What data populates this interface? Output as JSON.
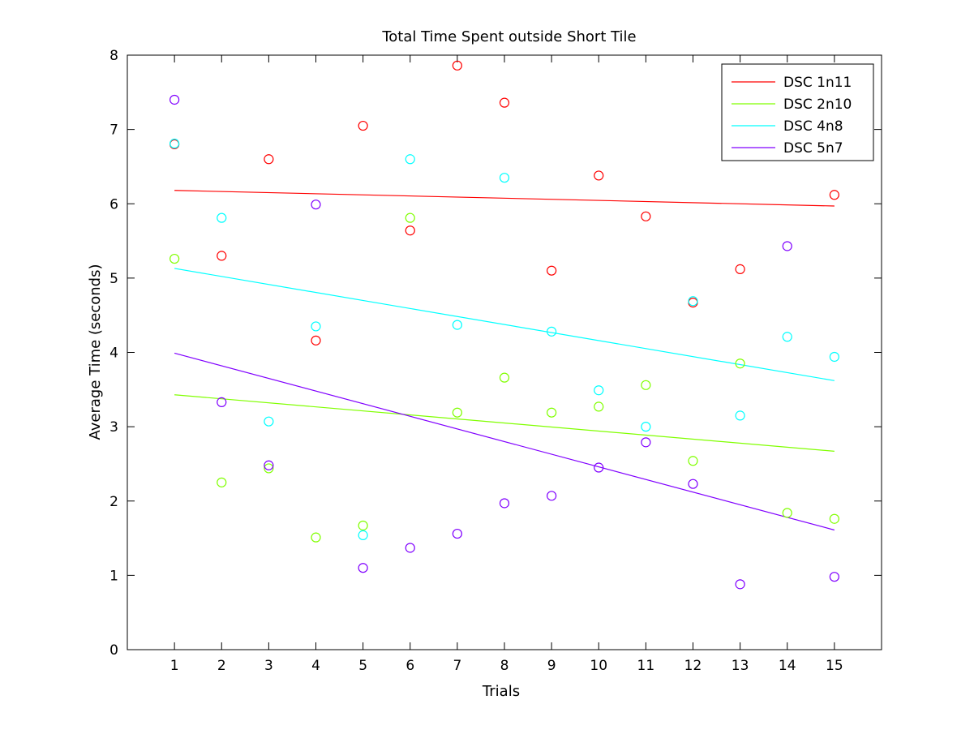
{
  "chart_data": {
    "type": "scatter",
    "title": "Total Time Spent outside Short Tile",
    "xlabel": "Trials",
    "ylabel": "Average Time (seconds)",
    "xlim": [
      0,
      16
    ],
    "ylim": [
      0,
      8
    ],
    "xticks": [
      1,
      2,
      3,
      4,
      5,
      6,
      7,
      8,
      9,
      10,
      11,
      12,
      13,
      14,
      15
    ],
    "yticks": [
      0,
      1,
      2,
      3,
      4,
      5,
      6,
      7,
      8
    ],
    "grid": false,
    "legend_position": "top-right",
    "x": [
      1,
      2,
      3,
      4,
      5,
      6,
      7,
      8,
      9,
      10,
      11,
      12,
      13,
      14,
      15
    ],
    "series": [
      {
        "name": "DSC 1n11",
        "color": "#ff0000",
        "values": [
          6.8,
          5.3,
          6.6,
          4.16,
          7.05,
          5.64,
          7.86,
          7.36,
          5.1,
          6.38,
          5.83,
          4.67,
          5.12,
          null,
          6.12
        ],
        "trend": [
          6.18,
          5.97
        ]
      },
      {
        "name": "DSC 2n10",
        "color": "#80ff00",
        "values": [
          5.26,
          2.25,
          2.44,
          1.51,
          1.67,
          5.81,
          3.19,
          3.66,
          3.19,
          3.27,
          3.56,
          2.54,
          3.85,
          1.84,
          1.76
        ],
        "trend": [
          3.43,
          2.67
        ]
      },
      {
        "name": "DSC 4n8",
        "color": "#00ffff",
        "values": [
          6.81,
          5.81,
          3.07,
          4.35,
          1.54,
          6.6,
          4.37,
          6.35,
          4.28,
          3.49,
          3.0,
          4.69,
          3.15,
          4.21,
          3.94
        ],
        "trend": [
          5.13,
          3.62
        ]
      },
      {
        "name": "DSC 5n7",
        "color": "#8000ff",
        "values": [
          7.4,
          3.33,
          2.48,
          5.99,
          1.1,
          1.37,
          1.56,
          1.97,
          2.07,
          2.45,
          2.79,
          2.23,
          0.88,
          5.43,
          0.98
        ],
        "trend": [
          3.99,
          1.61
        ]
      }
    ]
  }
}
